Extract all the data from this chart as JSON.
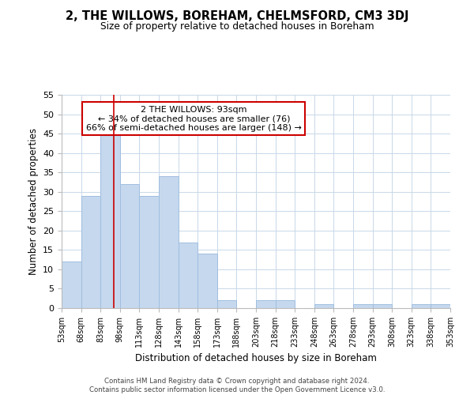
{
  "title": "2, THE WILLOWS, BOREHAM, CHELMSFORD, CM3 3DJ",
  "subtitle": "Size of property relative to detached houses in Boreham",
  "xlabel": "Distribution of detached houses by size in Boreham",
  "ylabel": "Number of detached properties",
  "bar_color": "#c5d8ed",
  "bar_edge_color": "#a0bee0",
  "property_line_x": 93,
  "property_line_color": "#cc0000",
  "bin_edges": [
    53,
    68,
    83,
    98,
    113,
    128,
    143,
    158,
    173,
    188,
    203,
    218,
    233,
    248,
    263,
    278,
    293,
    308,
    323,
    338,
    353
  ],
  "counts": [
    12,
    29,
    46,
    32,
    29,
    34,
    17,
    14,
    2,
    0,
    2,
    2,
    0,
    1,
    0,
    1,
    1,
    0,
    1,
    1
  ],
  "tick_labels": [
    "53sqm",
    "68sqm",
    "83sqm",
    "98sqm",
    "113sqm",
    "128sqm",
    "143sqm",
    "158sqm",
    "173sqm",
    "188sqm",
    "203sqm",
    "218sqm",
    "233sqm",
    "248sqm",
    "263sqm",
    "278sqm",
    "293sqm",
    "308sqm",
    "323sqm",
    "338sqm",
    "353sqm"
  ],
  "ylim": [
    0,
    55
  ],
  "yticks": [
    0,
    5,
    10,
    15,
    20,
    25,
    30,
    35,
    40,
    45,
    50,
    55
  ],
  "annotation_text": "2 THE WILLOWS: 93sqm\n← 34% of detached houses are smaller (76)\n66% of semi-detached houses are larger (148) →",
  "annotation_box_color": "#ffffff",
  "annotation_box_edge": "#cc0000",
  "footer_line1": "Contains HM Land Registry data © Crown copyright and database right 2024.",
  "footer_line2": "Contains public sector information licensed under the Open Government Licence v3.0.",
  "background_color": "#ffffff",
  "grid_color": "#c8d8e8"
}
